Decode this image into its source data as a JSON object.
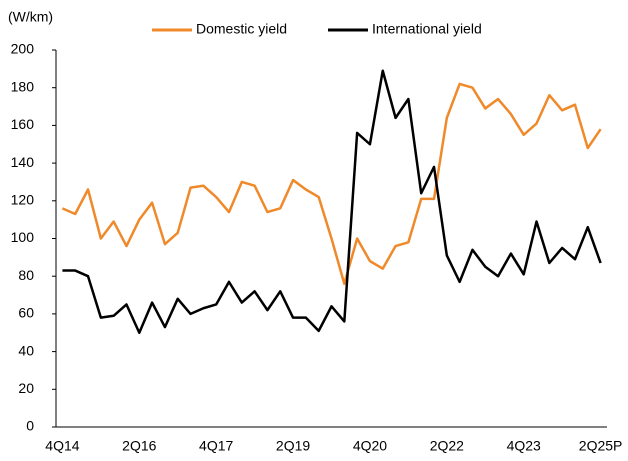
{
  "chart_data": {
    "type": "line",
    "y_axis_label": "(W/km)",
    "categories": [
      "4Q14",
      null,
      null,
      null,
      null,
      null,
      "2Q16",
      null,
      null,
      null,
      null,
      null,
      "4Q17",
      null,
      null,
      null,
      null,
      null,
      "2Q19",
      null,
      null,
      null,
      null,
      null,
      "4Q20",
      null,
      null,
      null,
      null,
      null,
      "2Q22",
      null,
      null,
      null,
      null,
      null,
      "4Q23",
      null,
      null,
      null,
      null,
      null,
      "2Q25P"
    ],
    "series": [
      {
        "name": "Domestic yield",
        "color": "#f0892a",
        "values": [
          116,
          113,
          126,
          100,
          109,
          96,
          110,
          119,
          97,
          103,
          127,
          128,
          122,
          114,
          130,
          128,
          114,
          116,
          131,
          126,
          122,
          100,
          76,
          100,
          88,
          84,
          96,
          98,
          121,
          121,
          164,
          182,
          180,
          169,
          174,
          166,
          155,
          161,
          176,
          168,
          171,
          148,
          158
        ]
      },
      {
        "name": "International yield",
        "color": "#000000",
        "values": [
          83,
          83,
          80,
          58,
          59,
          65,
          50,
          66,
          53,
          68,
          60,
          63,
          65,
          77,
          66,
          72,
          62,
          72,
          58,
          58,
          51,
          64,
          56,
          156,
          150,
          189,
          164,
          174,
          124,
          138,
          91,
          77,
          94,
          85,
          80,
          92,
          81,
          109,
          87,
          95,
          89,
          106,
          87
        ]
      }
    ],
    "ylim": [
      0,
      200
    ],
    "yticks": [
      0,
      20,
      40,
      60,
      80,
      100,
      120,
      140,
      160,
      180,
      200
    ],
    "grid": false,
    "legend": "top"
  }
}
